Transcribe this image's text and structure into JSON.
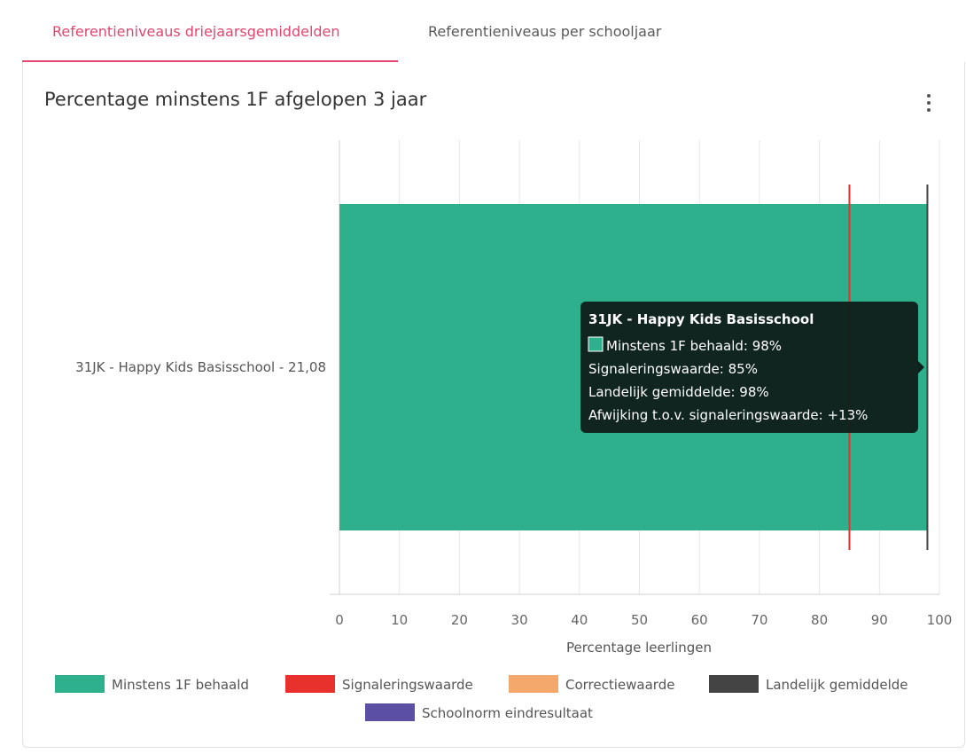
{
  "tabs": [
    {
      "label": "Referentieniveaus driejaarsgemiddelden",
      "active": true
    },
    {
      "label": "Referentieniveaus per schooljaar",
      "active": false
    }
  ],
  "card": {
    "title": "Percentage minstens 1F afgelopen 3 jaar",
    "menu_icon": "kebab-menu-icon"
  },
  "colors": {
    "accent": "#e2466f",
    "bar": "#2fb08c",
    "signalering": "#e8302c",
    "correctie": "#f4a86b",
    "landelijk": "#444444",
    "schoolnorm": "#5b4fa3"
  },
  "chart_data": {
    "type": "bar",
    "orientation": "horizontal",
    "categories": [
      "31JK - Happy Kids Basisschool - 21,08"
    ],
    "series": [
      {
        "name": "Minstens 1F behaald",
        "values": [
          98
        ]
      }
    ],
    "reference_lines": [
      {
        "name": "Signaleringswaarde",
        "value": 85
      },
      {
        "name": "Landelijk gemiddelde",
        "value": 98
      }
    ],
    "xlabel": "Percentage leerlingen",
    "xlim": [
      0,
      100
    ],
    "xticks": [
      0,
      10,
      20,
      30,
      40,
      50,
      60,
      70,
      80,
      90,
      100
    ],
    "grid": true,
    "legend": {
      "placement": "bottom",
      "items": [
        {
          "label": "Minstens 1F behaald",
          "color": "#2fb08c"
        },
        {
          "label": "Signaleringswaarde",
          "color": "#e8302c"
        },
        {
          "label": "Correctiewaarde",
          "color": "#f4a86b"
        },
        {
          "label": "Landelijk gemiddelde",
          "color": "#444444"
        },
        {
          "label": "Schoolnorm eindresultaat",
          "color": "#5b4fa3"
        }
      ]
    },
    "tooltip": {
      "title": "31JK - Happy Kids Basisschool",
      "lines": [
        "Minstens 1F behaald: 98%",
        "Signaleringswaarde: 85%",
        "Landelijk gemiddelde: 98%",
        "Afwijking t.o.v. signaleringswaarde: +13%"
      ]
    }
  }
}
